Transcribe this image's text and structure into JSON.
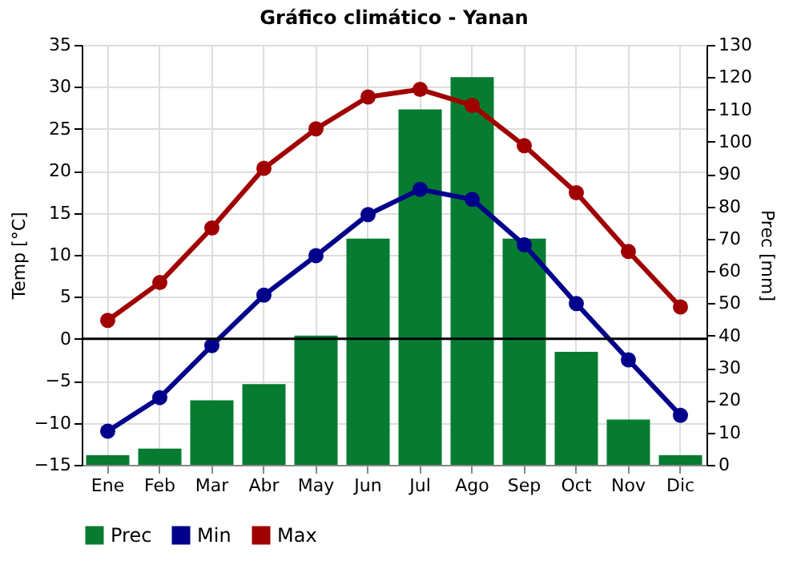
{
  "chart_data": {
    "type": "bar",
    "title": "Gráfico climático - Yanan",
    "ylabel": "Temp [°C]",
    "y2label": "Prec [mm]",
    "categories": [
      "Ene",
      "Feb",
      "Mar",
      "Abr",
      "May",
      "Jun",
      "Jul",
      "Ago",
      "Sep",
      "Oct",
      "Nov",
      "Dic"
    ],
    "series": [
      {
        "name": "Prec",
        "axis": "y2",
        "color": "#077c30",
        "values": [
          3,
          5,
          20,
          25,
          40,
          70,
          110,
          120,
          70,
          35,
          14,
          3
        ]
      },
      {
        "name": "Min",
        "type": "line",
        "color": "#00008b",
        "values": [
          -11,
          -7,
          -0.8,
          5.2,
          9.9,
          14.8,
          17.8,
          16.6,
          11.2,
          4.2,
          -2.5,
          -9.1
        ]
      },
      {
        "name": "Max",
        "type": "line",
        "color": "#a00000",
        "values": [
          2.2,
          6.7,
          13.2,
          20.3,
          25,
          28.8,
          29.7,
          27.8,
          23,
          17.4,
          10.4,
          3.8
        ]
      }
    ],
    "ylim": [
      -15,
      35
    ],
    "yticks": [
      -15,
      -10,
      -5,
      0,
      5,
      10,
      15,
      20,
      25,
      30,
      35
    ],
    "y2lim": [
      0,
      130
    ],
    "y2ticks": [
      0,
      10,
      20,
      30,
      40,
      50,
      60,
      70,
      80,
      90,
      100,
      110,
      120,
      130
    ],
    "ref_lines": [
      {
        "axis": "y",
        "value": 0,
        "color": "#000000"
      }
    ],
    "grid": true,
    "legend": "bottom left",
    "marker": "circle",
    "line_style": "solid"
  }
}
